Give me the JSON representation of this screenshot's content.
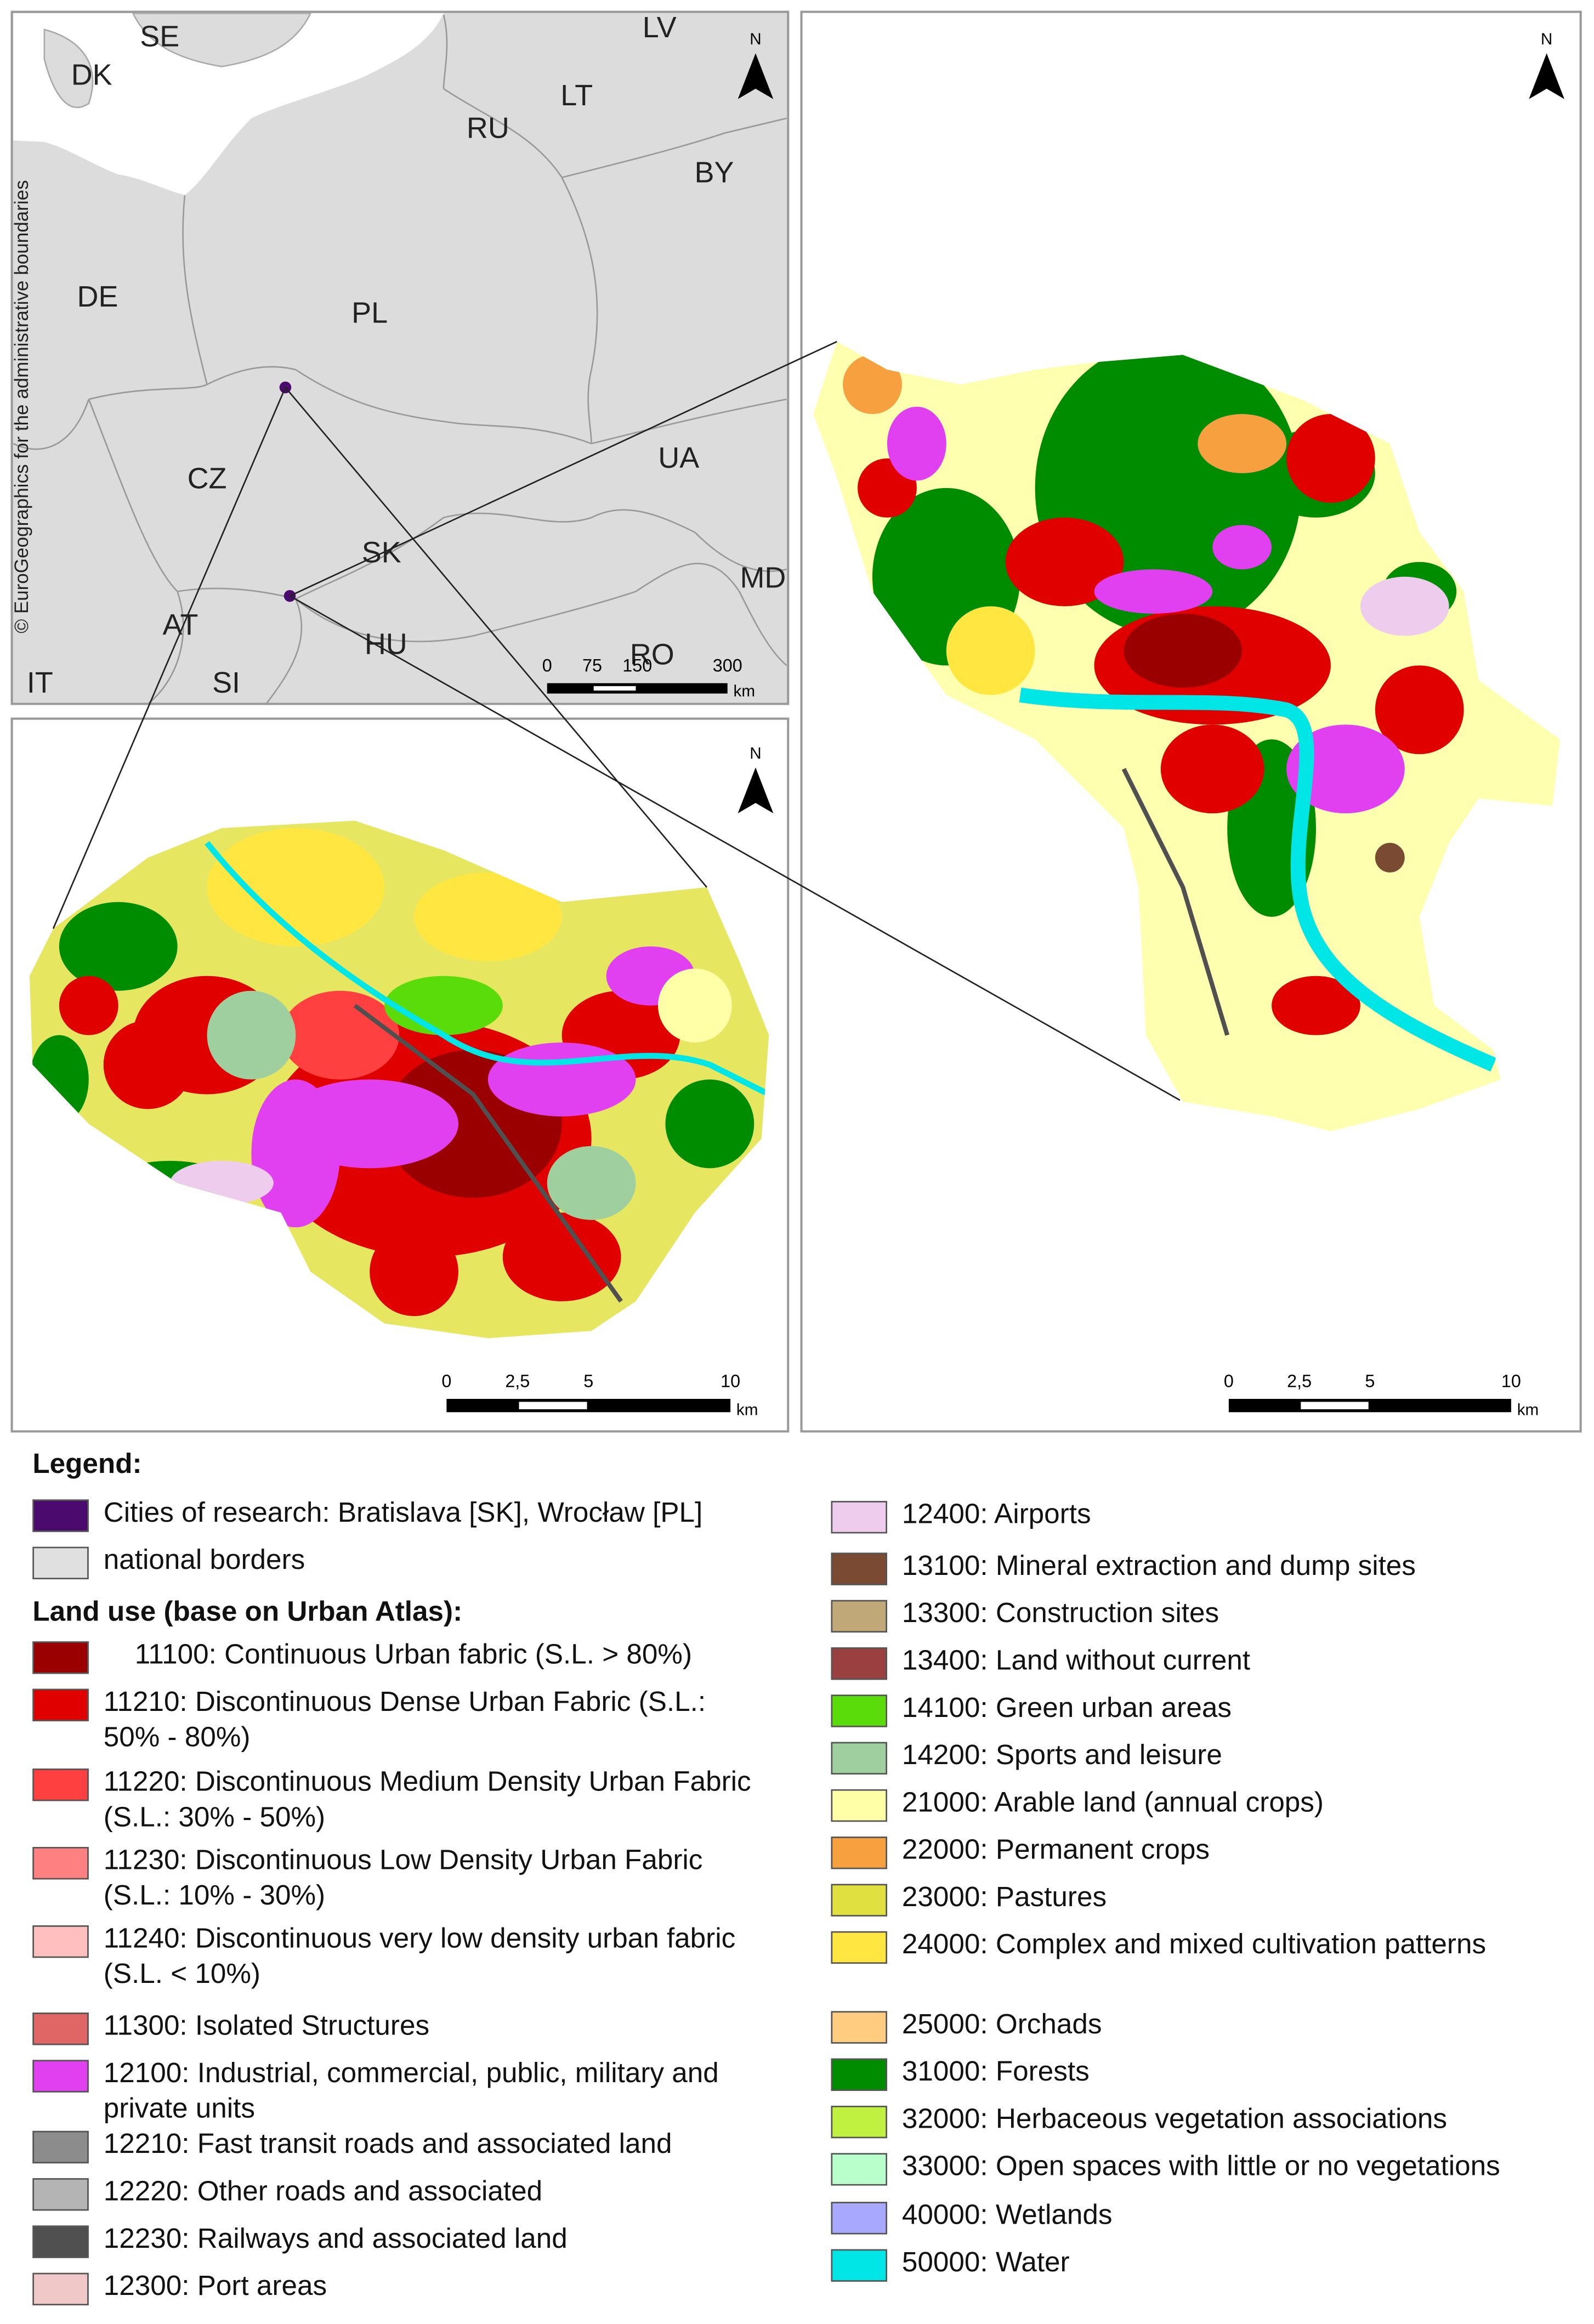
{
  "overview_map": {
    "country_labels": [
      "SE",
      "DK",
      "LV",
      "LT",
      "RU",
      "BY",
      "DE",
      "PL",
      "CZ",
      "UA",
      "SK",
      "MD",
      "AT",
      "HU",
      "RO",
      "IT",
      "SI"
    ],
    "copyright": "© EuroGeographics for the administrative boundaries",
    "north": "N",
    "scale_labels": [
      "0",
      "75",
      "150",
      "300"
    ],
    "scale_unit": "km"
  },
  "wroclaw_map": {
    "north": "N",
    "scale_labels": [
      "0",
      "2,5",
      "5",
      "10"
    ],
    "scale_unit": "km"
  },
  "bratislava_map": {
    "north": "N",
    "scale_labels": [
      "0",
      "2,5",
      "5",
      "10"
    ],
    "scale_unit": "km"
  },
  "legend": {
    "title": "Legend:",
    "general": [
      {
        "label": "Cities of research: Bratislava [SK], Wrocław [PL]",
        "color": "#4b0a6e"
      },
      {
        "label": "national borders",
        "color": "#e0e0e0"
      }
    ],
    "land_use_title": "Land use (base on Urban Atlas):",
    "land_use": [
      {
        "label": "    11100: Continuous Urban fabric (S.L. > 80%)",
        "color": "#9a0000"
      },
      {
        "label": "11210: Discontinuous Dense Urban Fabric (S.L.: 50% - 80%)",
        "color": "#e00000"
      },
      {
        "label": "11220: Discontinuous Medium Density Urban Fabric (S.L.: 30% - 50%)",
        "color": "#ff4040"
      },
      {
        "label": "11230: Discontinuous Low Density Urban Fabric (S.L.: 10% - 30%)",
        "color": "#ff8080"
      },
      {
        "label": "11240: Discontinuous very low density urban fabric (S.L. < 10%)",
        "color": "#ffbfbf"
      },
      {
        "label": "11300: Isolated Structures",
        "color": "#e06666"
      },
      {
        "label": "12100: Industrial, commercial, public, military and private units",
        "color": "#e040f0"
      },
      {
        "label": "12210: Fast transit roads and associated land",
        "color": "#8c8c8c"
      },
      {
        "label": "12220: Other roads and associated",
        "color": "#b4b4b4"
      },
      {
        "label": "12230: Railways and associated land",
        "color": "#505050"
      },
      {
        "label": "12300: Port areas",
        "color": "#f0c8c8"
      },
      {
        "label": "12400: Airports",
        "color": "#eeccee"
      },
      {
        "label": "13100: Mineral extraction and dump sites",
        "color": "#7a4a32"
      },
      {
        "label": "13300: Construction sites",
        "color": "#c0a878"
      },
      {
        "label": "13400: Land without current",
        "color": "#9a4040"
      },
      {
        "label": "14100: Green urban areas",
        "color": "#5adc0a"
      },
      {
        "label": "14200: Sports and leisure",
        "color": "#9fcf9f"
      },
      {
        "label": "21000: Arable land (annual crops)",
        "color": "#ffffa8"
      },
      {
        "label": "22000: Permanent crops",
        "color": "#f7a040"
      },
      {
        "label": "23000: Pastures",
        "color": "#e0e040"
      },
      {
        "label": "24000: Complex and mixed cultivation patterns",
        "color": "#ffe640"
      },
      {
        "label": "25000: Orchads",
        "color": "#ffcc80"
      },
      {
        "label": "31000: Forests",
        "color": "#008c00"
      },
      {
        "label": "32000: Herbaceous vegetation associations",
        "color": "#c0f040"
      },
      {
        "label": "33000: Open spaces with little or no vegetations",
        "color": "#b8ffcc"
      },
      {
        "label": "40000: Wetlands",
        "color": "#a8a8ff"
      },
      {
        "label": "50000: Water",
        "color": "#00e6e6"
      }
    ]
  }
}
